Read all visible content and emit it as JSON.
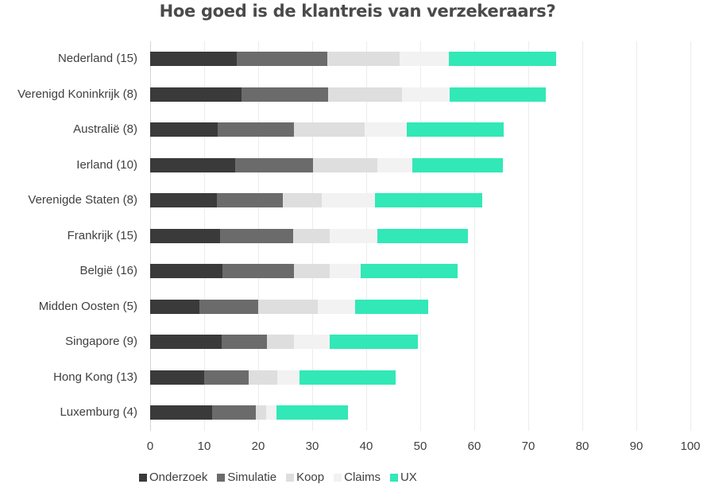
{
  "title": "Hoe goed is de klantreis van verzekeraars?",
  "colors": {
    "Onderzoek": "#3a3a3a",
    "Simulatie": "#6b6b6b",
    "Koop": "#dedede",
    "Claims": "#f2f2f2",
    "UX": "#32e8b7"
  },
  "legend": [
    {
      "name": "Onderzoek",
      "color": "#3a3a3a"
    },
    {
      "name": "Simulatie",
      "color": "#6b6b6b"
    },
    {
      "name": "Koop",
      "color": "#dedede"
    },
    {
      "name": "Claims",
      "color": "#f2f2f2"
    },
    {
      "name": "UX",
      "color": "#32e8b7"
    }
  ],
  "chart_data": {
    "type": "bar",
    "orientation": "horizontal",
    "stacked": true,
    "title": "Hoe goed is de klantreis van verzekeraars?",
    "xlabel": "",
    "ylabel": "",
    "xlim": [
      0,
      100
    ],
    "xticks": [
      0,
      10,
      20,
      30,
      40,
      50,
      60,
      70,
      80,
      90,
      100
    ],
    "grid": true,
    "legend_position": "bottom",
    "categories": [
      "Nederland (15)",
      "Verenigd Koninkrijk (8)",
      "Australië (8)",
      "Ierland (10)",
      "Verenigde Staten (8)",
      "Frankrijk (15)",
      "België (16)",
      "Midden Oosten (5)",
      "Singapore (9)",
      "Hong Kong (13)",
      "Luxemburg (4)"
    ],
    "series": [
      {
        "name": "Onderzoek",
        "values": [
          16.0,
          16.9,
          12.5,
          15.7,
          12.4,
          13.0,
          13.4,
          9.1,
          13.2,
          10.0,
          11.5
        ]
      },
      {
        "name": "Simulatie",
        "values": [
          16.8,
          16.0,
          14.1,
          14.4,
          12.2,
          13.5,
          13.2,
          10.9,
          8.4,
          8.2,
          8.0
        ]
      },
      {
        "name": "Koop",
        "values": [
          13.4,
          13.7,
          13.1,
          11.9,
          7.2,
          6.7,
          6.6,
          11.0,
          5.0,
          5.4,
          2.0
        ]
      },
      {
        "name": "Claims",
        "values": [
          9.1,
          8.8,
          7.8,
          6.5,
          9.8,
          8.9,
          5.7,
          7.0,
          6.7,
          4.0,
          1.9
        ]
      },
      {
        "name": "UX",
        "values": [
          19.8,
          17.9,
          17.9,
          16.8,
          19.9,
          16.7,
          18.0,
          13.4,
          16.2,
          17.9,
          13.2
        ]
      }
    ]
  }
}
